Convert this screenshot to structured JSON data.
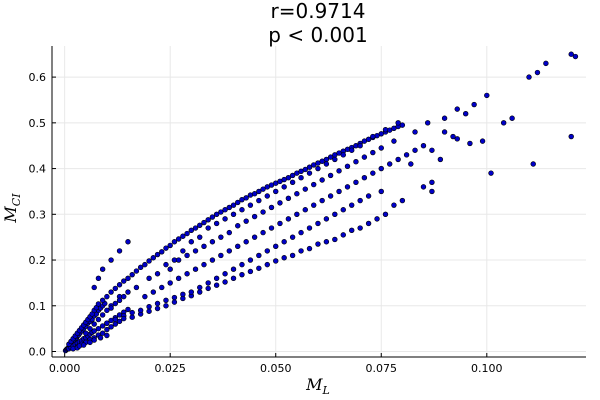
{
  "chart_data": {
    "type": "scatter",
    "title_line1": "r=0.9714",
    "title_line2": "p < 0.001",
    "xlabel_main": "M",
    "xlabel_sub": "L",
    "ylabel_main": "M",
    "ylabel_sub": "CI",
    "xlim": [
      -0.003,
      0.1235
    ],
    "ylim": [
      -0.012,
      0.668
    ],
    "x_ticks": [
      0.0,
      0.025,
      0.05,
      0.075,
      0.1
    ],
    "x_tick_labels": [
      "0.000",
      "0.025",
      "0.050",
      "0.075",
      "0.100"
    ],
    "y_ticks": [
      0.0,
      0.1,
      0.2,
      0.3,
      0.4,
      0.5,
      0.6
    ],
    "y_tick_labels": [
      "0.0",
      "0.1",
      "0.2",
      "0.3",
      "0.4",
      "0.5",
      "0.6"
    ],
    "grid": true,
    "legend": "none",
    "marker_color": "#0000c8",
    "points": [
      [
        0.0002,
        0.002
      ],
      [
        0.0004,
        0.004
      ],
      [
        0.0006,
        0.006
      ],
      [
        0.0008,
        0.007
      ],
      [
        0.001,
        0.01
      ],
      [
        0.0012,
        0.012
      ],
      [
        0.0014,
        0.015
      ],
      [
        0.0016,
        0.016
      ],
      [
        0.0018,
        0.02
      ],
      [
        0.002,
        0.022
      ],
      [
        0.0022,
        0.025
      ],
      [
        0.0025,
        0.028
      ],
      [
        0.0028,
        0.03
      ],
      [
        0.003,
        0.034
      ],
      [
        0.0033,
        0.036
      ],
      [
        0.0036,
        0.04
      ],
      [
        0.004,
        0.045
      ],
      [
        0.0045,
        0.05
      ],
      [
        0.005,
        0.055
      ],
      [
        0.0055,
        0.062
      ],
      [
        0.006,
        0.066
      ],
      [
        0.0065,
        0.07
      ],
      [
        0.007,
        0.078
      ],
      [
        0.0075,
        0.082
      ],
      [
        0.008,
        0.09
      ],
      [
        0.0085,
        0.095
      ],
      [
        0.009,
        0.1
      ],
      [
        0.0095,
        0.105
      ],
      [
        0.001,
        0.006
      ],
      [
        0.0015,
        0.009
      ],
      [
        0.002,
        0.012
      ],
      [
        0.0025,
        0.015
      ],
      [
        0.003,
        0.018
      ],
      [
        0.0035,
        0.021
      ],
      [
        0.004,
        0.024
      ],
      [
        0.0045,
        0.028
      ],
      [
        0.005,
        0.03
      ],
      [
        0.0055,
        0.034
      ],
      [
        0.006,
        0.038
      ],
      [
        0.0065,
        0.042
      ],
      [
        0.007,
        0.045
      ],
      [
        0.008,
        0.05
      ],
      [
        0.009,
        0.056
      ],
      [
        0.01,
        0.062
      ],
      [
        0.011,
        0.068
      ],
      [
        0.012,
        0.074
      ],
      [
        0.013,
        0.08
      ],
      [
        0.014,
        0.086
      ],
      [
        0.015,
        0.092
      ],
      [
        0.001,
        0.016
      ],
      [
        0.0015,
        0.022
      ],
      [
        0.002,
        0.028
      ],
      [
        0.0025,
        0.034
      ],
      [
        0.003,
        0.04
      ],
      [
        0.0035,
        0.046
      ],
      [
        0.004,
        0.052
      ],
      [
        0.0045,
        0.058
      ],
      [
        0.005,
        0.064
      ],
      [
        0.0055,
        0.07
      ],
      [
        0.006,
        0.076
      ],
      [
        0.0065,
        0.082
      ],
      [
        0.007,
        0.09
      ],
      [
        0.0075,
        0.096
      ],
      [
        0.008,
        0.104
      ],
      [
        0.009,
        0.112
      ],
      [
        0.01,
        0.12
      ],
      [
        0.011,
        0.13
      ],
      [
        0.012,
        0.138
      ],
      [
        0.013,
        0.146
      ],
      [
        0.014,
        0.154
      ],
      [
        0.015,
        0.16
      ],
      [
        0.016,
        0.168
      ],
      [
        0.017,
        0.176
      ],
      [
        0.018,
        0.184
      ],
      [
        0.019,
        0.19
      ],
      [
        0.02,
        0.198
      ],
      [
        0.021,
        0.205
      ],
      [
        0.022,
        0.212
      ],
      [
        0.023,
        0.218
      ],
      [
        0.024,
        0.226
      ],
      [
        0.025,
        0.232
      ],
      [
        0.026,
        0.24
      ],
      [
        0.027,
        0.246
      ],
      [
        0.028,
        0.252
      ],
      [
        0.029,
        0.258
      ],
      [
        0.03,
        0.265
      ],
      [
        0.031,
        0.27
      ],
      [
        0.032,
        0.276
      ],
      [
        0.033,
        0.282
      ],
      [
        0.034,
        0.288
      ],
      [
        0.035,
        0.294
      ],
      [
        0.036,
        0.3
      ],
      [
        0.037,
        0.305
      ],
      [
        0.038,
        0.31
      ],
      [
        0.039,
        0.315
      ],
      [
        0.04,
        0.32
      ],
      [
        0.041,
        0.326
      ],
      [
        0.042,
        0.332
      ],
      [
        0.043,
        0.336
      ],
      [
        0.044,
        0.342
      ],
      [
        0.045,
        0.345
      ],
      [
        0.046,
        0.35
      ],
      [
        0.047,
        0.355
      ],
      [
        0.048,
        0.36
      ],
      [
        0.049,
        0.364
      ],
      [
        0.05,
        0.368
      ],
      [
        0.051,
        0.372
      ],
      [
        0.052,
        0.376
      ],
      [
        0.053,
        0.38
      ],
      [
        0.054,
        0.385
      ],
      [
        0.055,
        0.39
      ],
      [
        0.056,
        0.394
      ],
      [
        0.057,
        0.398
      ],
      [
        0.058,
        0.403
      ],
      [
        0.059,
        0.408
      ],
      [
        0.06,
        0.412
      ],
      [
        0.061,
        0.416
      ],
      [
        0.062,
        0.42
      ],
      [
        0.063,
        0.425
      ],
      [
        0.064,
        0.43
      ],
      [
        0.065,
        0.434
      ],
      [
        0.066,
        0.438
      ],
      [
        0.067,
        0.442
      ],
      [
        0.068,
        0.446
      ],
      [
        0.069,
        0.45
      ],
      [
        0.07,
        0.455
      ],
      [
        0.071,
        0.46
      ],
      [
        0.072,
        0.464
      ],
      [
        0.073,
        0.468
      ],
      [
        0.074,
        0.472
      ],
      [
        0.075,
        0.476
      ],
      [
        0.076,
        0.48
      ],
      [
        0.077,
        0.484
      ],
      [
        0.078,
        0.488
      ],
      [
        0.079,
        0.492
      ],
      [
        0.08,
        0.495
      ],
      [
        0.083,
        0.48
      ],
      [
        0.086,
        0.5
      ],
      [
        0.09,
        0.51
      ],
      [
        0.093,
        0.53
      ],
      [
        0.095,
        0.52
      ],
      [
        0.097,
        0.54
      ],
      [
        0.1,
        0.56
      ],
      [
        0.104,
        0.5
      ],
      [
        0.106,
        0.51
      ],
      [
        0.11,
        0.6
      ],
      [
        0.112,
        0.61
      ],
      [
        0.114,
        0.63
      ],
      [
        0.12,
        0.65
      ],
      [
        0.121,
        0.645
      ],
      [
        0.12,
        0.47
      ],
      [
        0.111,
        0.41
      ],
      [
        0.101,
        0.39
      ],
      [
        0.099,
        0.46
      ],
      [
        0.096,
        0.455
      ],
      [
        0.093,
        0.465
      ],
      [
        0.09,
        0.48
      ],
      [
        0.085,
        0.45
      ],
      [
        0.087,
        0.44
      ],
      [
        0.089,
        0.42
      ],
      [
        0.092,
        0.47
      ],
      [
        0.082,
        0.41
      ],
      [
        0.087,
        0.37
      ],
      [
        0.087,
        0.35
      ],
      [
        0.085,
        0.36
      ],
      [
        0.08,
        0.33
      ],
      [
        0.078,
        0.32
      ],
      [
        0.076,
        0.3
      ],
      [
        0.074,
        0.29
      ],
      [
        0.072,
        0.28
      ],
      [
        0.07,
        0.27
      ],
      [
        0.068,
        0.265
      ],
      [
        0.066,
        0.255
      ],
      [
        0.064,
        0.245
      ],
      [
        0.062,
        0.24
      ],
      [
        0.06,
        0.235
      ],
      [
        0.058,
        0.225
      ],
      [
        0.056,
        0.22
      ],
      [
        0.054,
        0.21
      ],
      [
        0.052,
        0.205
      ],
      [
        0.05,
        0.198
      ],
      [
        0.048,
        0.19
      ],
      [
        0.046,
        0.182
      ],
      [
        0.044,
        0.175
      ],
      [
        0.042,
        0.168
      ],
      [
        0.04,
        0.16
      ],
      [
        0.038,
        0.152
      ],
      [
        0.036,
        0.145
      ],
      [
        0.034,
        0.138
      ],
      [
        0.032,
        0.13
      ],
      [
        0.03,
        0.122
      ],
      [
        0.028,
        0.116
      ],
      [
        0.026,
        0.108
      ],
      [
        0.024,
        0.1
      ],
      [
        0.022,
        0.094
      ],
      [
        0.02,
        0.088
      ],
      [
        0.018,
        0.082
      ],
      [
        0.016,
        0.075
      ],
      [
        0.019,
        0.12
      ],
      [
        0.021,
        0.13
      ],
      [
        0.023,
        0.14
      ],
      [
        0.025,
        0.15
      ],
      [
        0.027,
        0.16
      ],
      [
        0.029,
        0.17
      ],
      [
        0.031,
        0.18
      ],
      [
        0.033,
        0.19
      ],
      [
        0.035,
        0.2
      ],
      [
        0.037,
        0.21
      ],
      [
        0.039,
        0.22
      ],
      [
        0.041,
        0.23
      ],
      [
        0.043,
        0.24
      ],
      [
        0.045,
        0.25
      ],
      [
        0.047,
        0.26
      ],
      [
        0.049,
        0.27
      ],
      [
        0.051,
        0.28
      ],
      [
        0.053,
        0.29
      ],
      [
        0.055,
        0.3
      ],
      [
        0.057,
        0.31
      ],
      [
        0.059,
        0.32
      ],
      [
        0.061,
        0.33
      ],
      [
        0.063,
        0.34
      ],
      [
        0.065,
        0.35
      ],
      [
        0.067,
        0.36
      ],
      [
        0.069,
        0.37
      ],
      [
        0.071,
        0.38
      ],
      [
        0.073,
        0.39
      ],
      [
        0.075,
        0.4
      ],
      [
        0.077,
        0.41
      ],
      [
        0.079,
        0.42
      ],
      [
        0.081,
        0.43
      ],
      [
        0.083,
        0.44
      ],
      [
        0.025,
        0.18
      ],
      [
        0.027,
        0.2
      ],
      [
        0.029,
        0.21
      ],
      [
        0.031,
        0.22
      ],
      [
        0.033,
        0.23
      ],
      [
        0.035,
        0.24
      ],
      [
        0.037,
        0.25
      ],
      [
        0.039,
        0.26
      ],
      [
        0.041,
        0.275
      ],
      [
        0.043,
        0.285
      ],
      [
        0.045,
        0.295
      ],
      [
        0.047,
        0.305
      ],
      [
        0.049,
        0.315
      ],
      [
        0.051,
        0.325
      ],
      [
        0.053,
        0.335
      ],
      [
        0.055,
        0.345
      ],
      [
        0.057,
        0.355
      ],
      [
        0.059,
        0.365
      ],
      [
        0.061,
        0.375
      ],
      [
        0.063,
        0.385
      ],
      [
        0.065,
        0.395
      ],
      [
        0.067,
        0.405
      ],
      [
        0.069,
        0.415
      ],
      [
        0.071,
        0.425
      ],
      [
        0.073,
        0.435
      ],
      [
        0.075,
        0.445
      ],
      [
        0.078,
        0.46
      ],
      [
        0.075,
        0.35
      ],
      [
        0.072,
        0.34
      ],
      [
        0.07,
        0.33
      ],
      [
        0.068,
        0.32
      ],
      [
        0.066,
        0.31
      ],
      [
        0.064,
        0.3
      ],
      [
        0.062,
        0.29
      ],
      [
        0.06,
        0.28
      ],
      [
        0.058,
        0.27
      ],
      [
        0.056,
        0.26
      ],
      [
        0.054,
        0.25
      ],
      [
        0.052,
        0.24
      ],
      [
        0.05,
        0.23
      ],
      [
        0.048,
        0.22
      ],
      [
        0.046,
        0.21
      ],
      [
        0.044,
        0.2
      ],
      [
        0.042,
        0.19
      ],
      [
        0.04,
        0.18
      ],
      [
        0.038,
        0.17
      ],
      [
        0.036,
        0.16
      ],
      [
        0.034,
        0.15
      ],
      [
        0.032,
        0.14
      ],
      [
        0.03,
        0.13
      ],
      [
        0.028,
        0.125
      ],
      [
        0.026,
        0.118
      ],
      [
        0.024,
        0.112
      ],
      [
        0.022,
        0.105
      ],
      [
        0.02,
        0.098
      ],
      [
        0.018,
        0.09
      ],
      [
        0.016,
        0.085
      ],
      [
        0.014,
        0.078
      ],
      [
        0.012,
        0.07
      ],
      [
        0.01,
        0.062
      ],
      [
        0.015,
        0.13
      ],
      [
        0.017,
        0.14
      ],
      [
        0.013,
        0.12
      ],
      [
        0.011,
        0.1
      ],
      [
        0.015,
        0.24
      ],
      [
        0.013,
        0.22
      ],
      [
        0.011,
        0.2
      ],
      [
        0.009,
        0.18
      ],
      [
        0.008,
        0.16
      ],
      [
        0.007,
        0.14
      ],
      [
        0.02,
        0.16
      ],
      [
        0.022,
        0.17
      ],
      [
        0.024,
        0.19
      ],
      [
        0.026,
        0.2
      ],
      [
        0.028,
        0.22
      ],
      [
        0.03,
        0.24
      ],
      [
        0.032,
        0.25
      ],
      [
        0.034,
        0.27
      ],
      [
        0.036,
        0.28
      ],
      [
        0.038,
        0.29
      ],
      [
        0.04,
        0.3
      ],
      [
        0.042,
        0.31
      ],
      [
        0.044,
        0.32
      ],
      [
        0.046,
        0.33
      ],
      [
        0.048,
        0.34
      ],
      [
        0.05,
        0.35
      ],
      [
        0.052,
        0.36
      ],
      [
        0.054,
        0.37
      ],
      [
        0.056,
        0.38
      ],
      [
        0.058,
        0.39
      ],
      [
        0.06,
        0.4
      ],
      [
        0.062,
        0.41
      ],
      [
        0.064,
        0.42
      ],
      [
        0.066,
        0.43
      ],
      [
        0.068,
        0.44
      ],
      [
        0.07,
        0.45
      ],
      [
        0.073,
        0.47
      ],
      [
        0.076,
        0.485
      ],
      [
        0.079,
        0.5
      ],
      [
        0.003,
        0.01
      ],
      [
        0.004,
        0.016
      ],
      [
        0.005,
        0.02
      ],
      [
        0.006,
        0.026
      ],
      [
        0.007,
        0.03
      ],
      [
        0.008,
        0.036
      ],
      [
        0.009,
        0.04
      ],
      [
        0.01,
        0.048
      ],
      [
        0.011,
        0.054
      ],
      [
        0.012,
        0.06
      ],
      [
        0.013,
        0.066
      ],
      [
        0.014,
        0.072
      ],
      [
        0.005,
        0.04
      ],
      [
        0.006,
        0.05
      ],
      [
        0.007,
        0.06
      ],
      [
        0.008,
        0.07
      ],
      [
        0.009,
        0.08
      ],
      [
        0.01,
        0.09
      ],
      [
        0.011,
        0.095
      ],
      [
        0.012,
        0.105
      ],
      [
        0.013,
        0.112
      ],
      [
        0.014,
        0.12
      ],
      [
        0.002,
        0.006
      ],
      [
        0.003,
        0.008
      ],
      [
        0.0035,
        0.012
      ],
      [
        0.0045,
        0.014
      ],
      [
        0.006,
        0.02
      ],
      [
        0.007,
        0.025
      ],
      [
        0.0085,
        0.03
      ],
      [
        0.01,
        0.035
      ]
    ]
  }
}
